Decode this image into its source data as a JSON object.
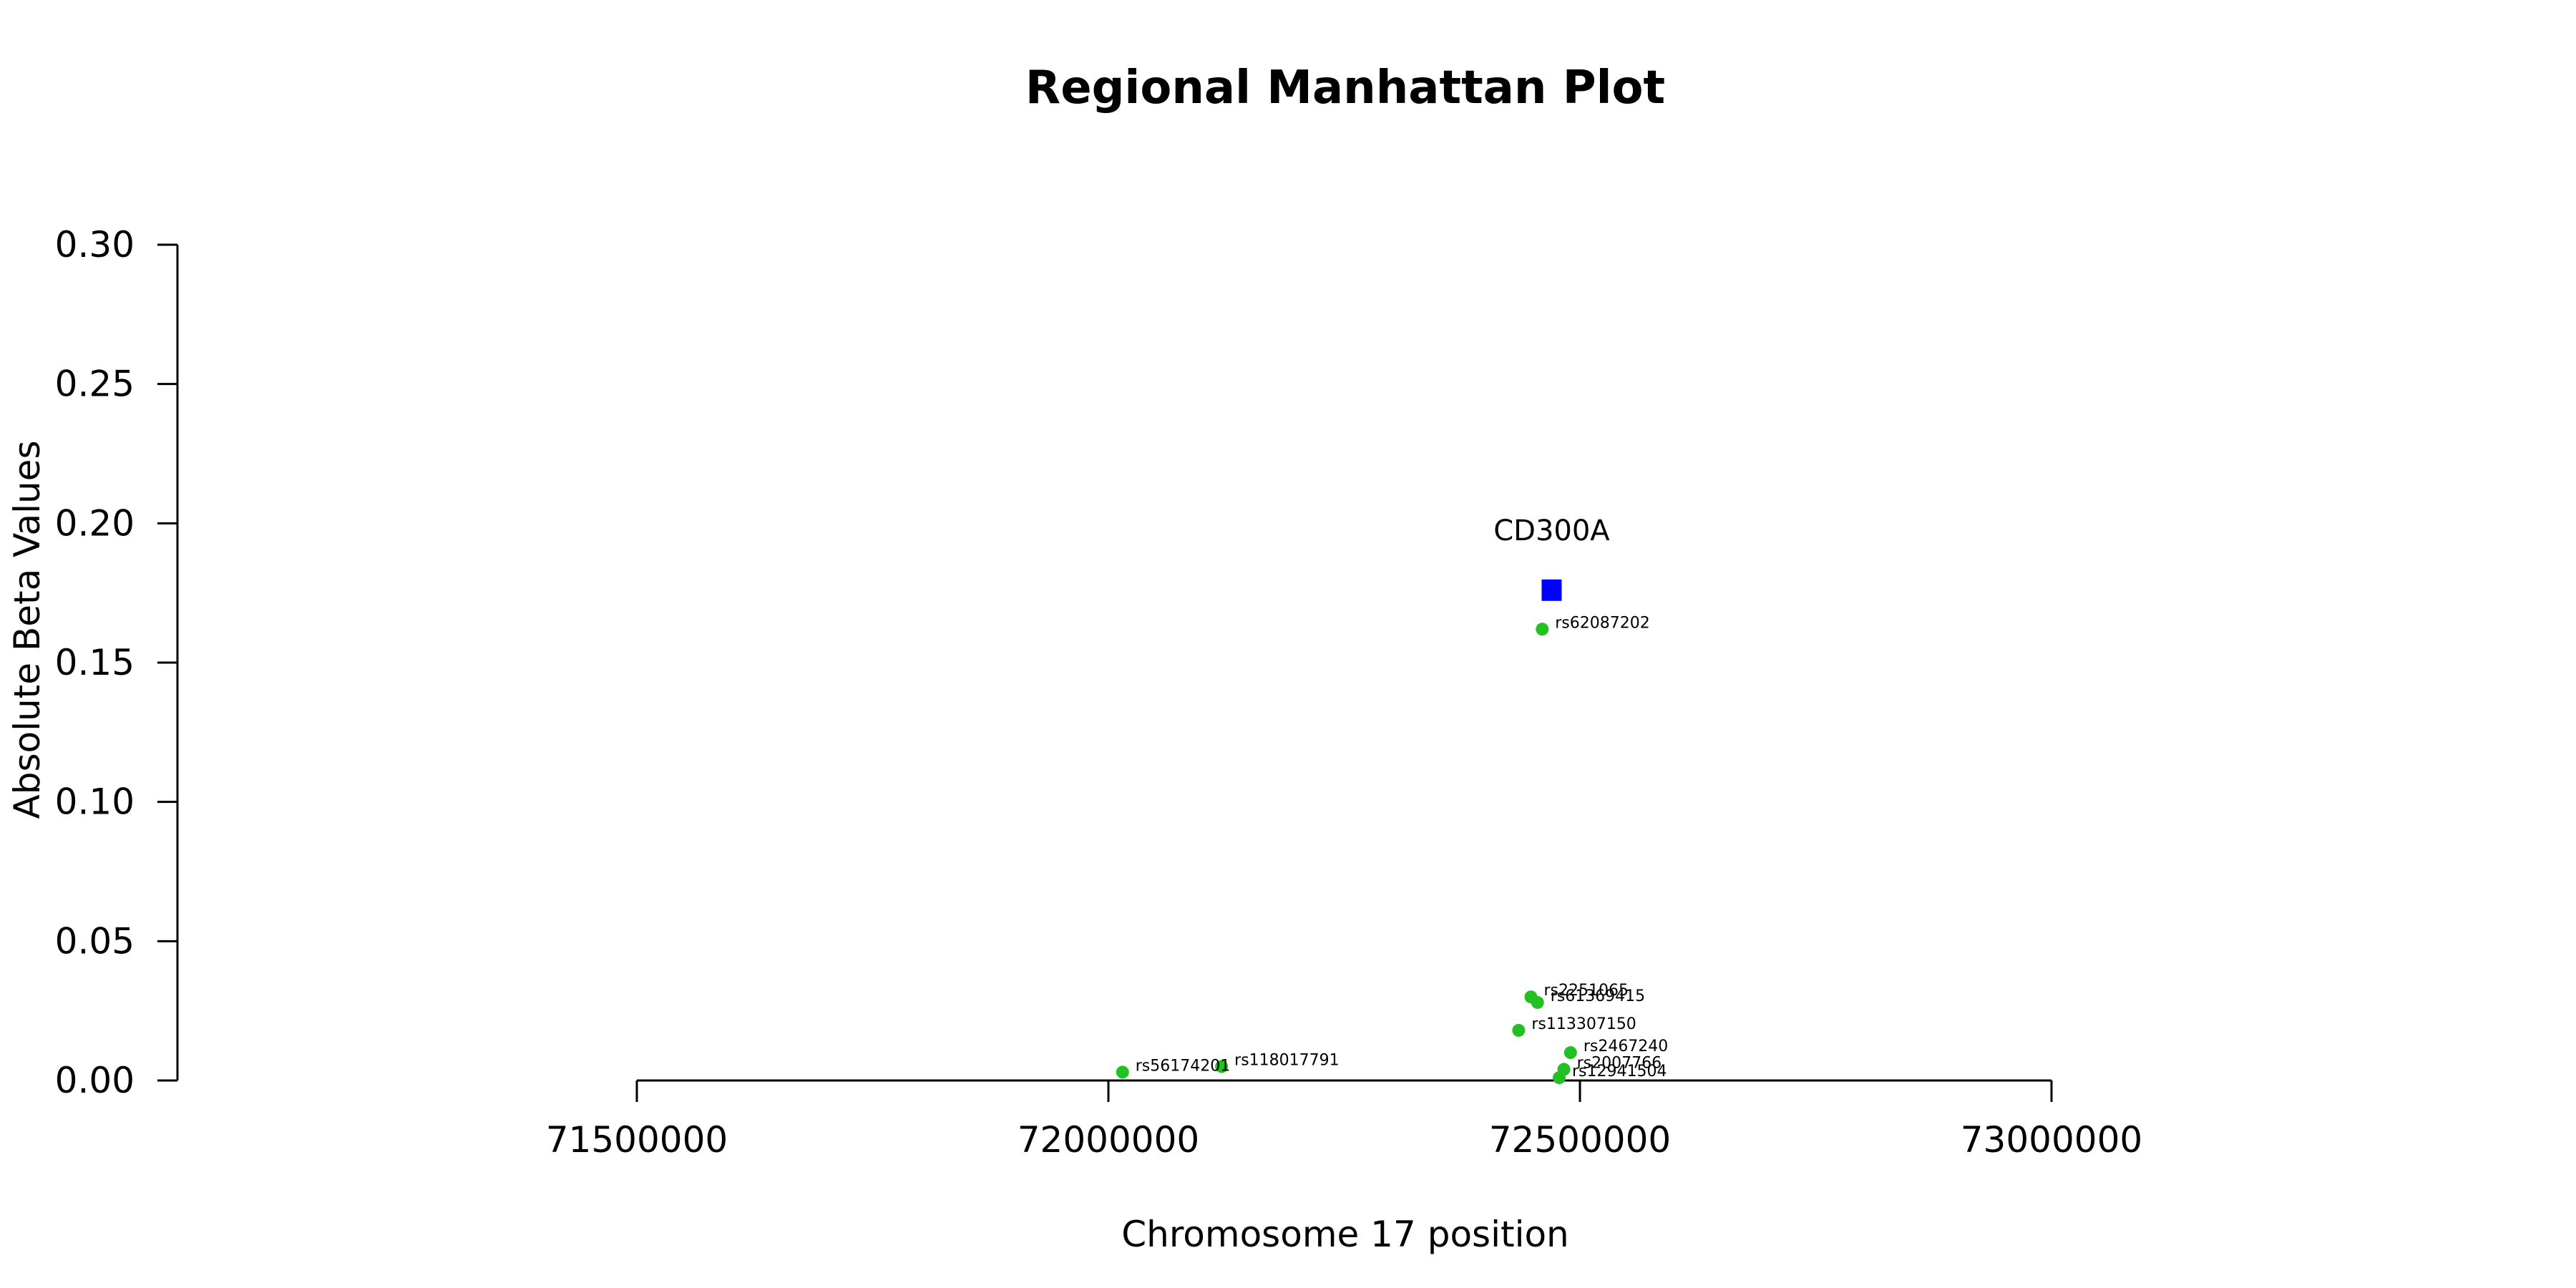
{
  "chart_data": {
    "type": "scatter",
    "title": "Regional Manhattan Plot",
    "xlabel": "Chromosome 17 position",
    "ylabel": "Absolute Beta Values",
    "xlim": [
      71500000,
      73000000
    ],
    "ylim": [
      0,
      0.3
    ],
    "x_ticks": [
      "71500000",
      "72000000",
      "72500000",
      "73000000"
    ],
    "y_ticks": [
      "0.00",
      "0.05",
      "0.10",
      "0.15",
      "0.20",
      "0.25",
      "0.30"
    ],
    "gene": {
      "name": "CD300A",
      "x": 72470000,
      "y": 0.176,
      "color": "#0000ff"
    },
    "snp_color": "#22c022",
    "points": [
      {
        "label": "rs62087202",
        "x": 72460000,
        "y": 0.162
      },
      {
        "label": "rs2251065",
        "x": 72448000,
        "y": 0.03
      },
      {
        "label": "rs61369415",
        "x": 72455000,
        "y": 0.028
      },
      {
        "label": "rs113307150",
        "x": 72435000,
        "y": 0.018
      },
      {
        "label": "rs2467240",
        "x": 72490000,
        "y": 0.01
      },
      {
        "label": "rs2007766",
        "x": 72483000,
        "y": 0.004
      },
      {
        "label": "rs12941504",
        "x": 72478000,
        "y": 0.001
      },
      {
        "label": "rs118017791",
        "x": 72120000,
        "y": 0.005
      },
      {
        "label": "rs56174201",
        "x": 72015000,
        "y": 0.003
      }
    ]
  }
}
